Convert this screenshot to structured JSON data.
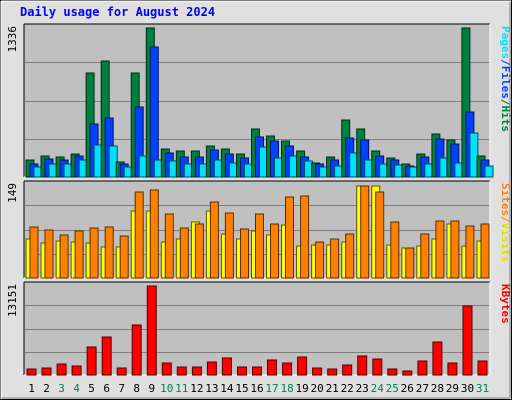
{
  "chart_data": {
    "type": "bar",
    "title": "Daily usage for August 2024",
    "categories": [
      "1",
      "2",
      "3",
      "4",
      "5",
      "6",
      "7",
      "8",
      "9",
      "10",
      "11",
      "12",
      "13",
      "14",
      "15",
      "16",
      "17",
      "18",
      "19",
      "20",
      "21",
      "22",
      "23",
      "24",
      "25",
      "26",
      "27",
      "28",
      "29",
      "30",
      "31"
    ],
    "weekend_days": [
      "3",
      "4",
      "10",
      "11",
      "17",
      "18",
      "24",
      "25",
      "31"
    ],
    "panels": [
      {
        "id": "hits",
        "max_label": "1336",
        "ylim": [
          0,
          1336
        ],
        "series": [
          {
            "name": "Hits",
            "color": "#008040",
            "values": [
              149,
              189,
              179,
              209,
              929,
              1038,
              134,
              929,
              1336,
              249,
              229,
              229,
              279,
              249,
              209,
              429,
              369,
              319,
              229,
              129,
              179,
              509,
              429,
              229,
              169,
              119,
              209,
              389,
              329,
              1336,
              189
            ]
          },
          {
            "name": "Files",
            "color": "#0040ff",
            "values": [
              119,
              159,
              149,
              189,
              479,
              529,
              119,
              629,
              1166,
              219,
              179,
              179,
              239,
              209,
              169,
              359,
              319,
              279,
              179,
              119,
              149,
              349,
              329,
              189,
              149,
              99,
              179,
              339,
              299,
              579,
              149
            ]
          },
          {
            "name": "Pages",
            "color": "#00e0ff",
            "values": [
              89,
              119,
              119,
              149,
              289,
              279,
              89,
              189,
              149,
              139,
              119,
              119,
              149,
              129,
              119,
              269,
              169,
              189,
              139,
              89,
              99,
              219,
              149,
              119,
              109,
              89,
              119,
              169,
              129,
              399,
              99
            ]
          }
        ]
      },
      {
        "id": "visits",
        "max_label": "149",
        "ylim": [
          0,
          149
        ],
        "series": [
          {
            "name": "Visits",
            "color": "#ffff00",
            "values": [
              62,
              56,
              59,
              58,
              56,
              50,
              50,
              107,
              108,
              57,
              63,
              89,
              107,
              70,
              62,
              75,
              69,
              85,
              52,
              53,
              53,
              57,
              148,
              147,
              53,
              48,
              52,
              63,
              86,
              51,
              60
            ]
          },
          {
            "name": "Sites",
            "color": "#ff8000",
            "values": [
              82,
              77,
              69,
              75,
              80,
              82,
              68,
              137,
              141,
              103,
              80,
              86,
              121,
              104,
              79,
              102,
              87,
              129,
              131,
              58,
              62,
              70,
              148,
              137,
              90,
              48,
              71,
              92,
              91,
              84,
              86
            ]
          }
        ]
      },
      {
        "id": "kbytes",
        "max_label": "13151",
        "ylim": [
          0,
          13151
        ],
        "series": [
          {
            "name": "KBytes",
            "color": "#ff0000",
            "values": [
              821,
              1068,
              1602,
              1397,
              4108,
              5667,
              1068,
              7392,
              13151,
              1808,
              1233,
              1192,
              1849,
              2506,
              1150,
              1150,
              2218,
              1767,
              2629,
              986,
              862,
              1438,
              2835,
              2425,
              945,
              657,
              2136,
              4930,
              1767,
              10187,
              2136
            ]
          }
        ]
      }
    ],
    "right_labels": [
      {
        "panel": "hits",
        "parts": [
          {
            "text": "Pages",
            "color": "#00e0ff"
          },
          {
            "text": "/",
            "color": "#0040ff"
          },
          {
            "text": "Files",
            "color": "#0040ff"
          },
          {
            "text": "/",
            "color": "#008040"
          },
          {
            "text": "Hits",
            "color": "#008040"
          }
        ]
      },
      {
        "panel": "visits",
        "parts": [
          {
            "text": "Sites",
            "color": "#ff8000"
          },
          {
            "text": "/",
            "color": "#ff8000"
          },
          {
            "text": "Visits",
            "color": "#e0e000"
          }
        ]
      },
      {
        "panel": "kbytes",
        "parts": [
          {
            "text": "KBytes",
            "color": "#ff0000"
          }
        ]
      }
    ]
  }
}
